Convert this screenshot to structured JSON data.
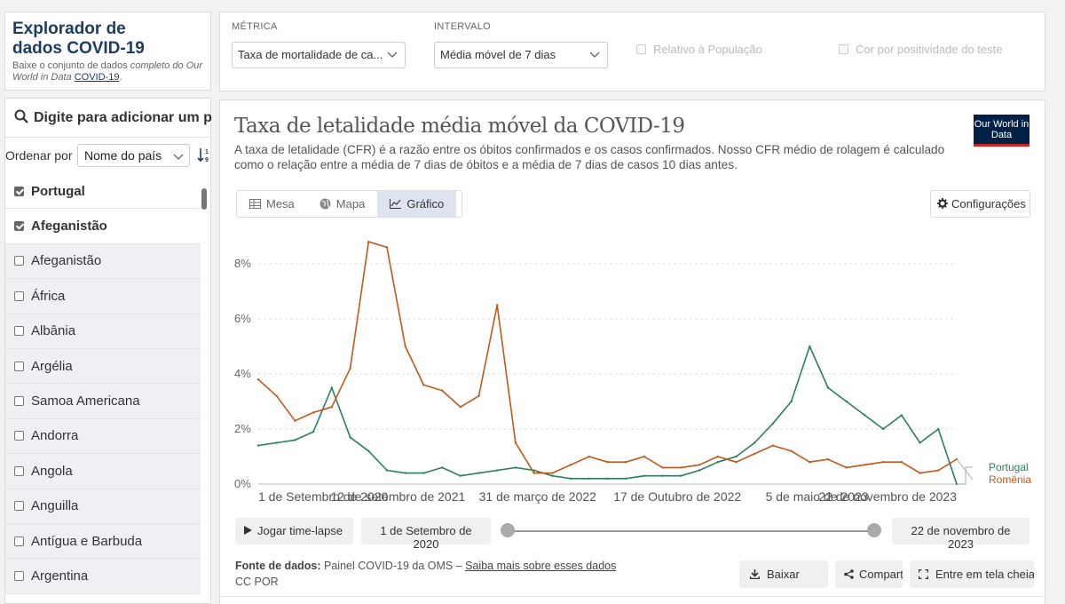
{
  "header": {
    "title": "Explorador de dados COVID-19",
    "subtitle_pre": "Baixe o conjunto de dados ",
    "subtitle_italic": "completo do Our World in Data",
    "subtitle_link": "COVID-19",
    "subtitle_post": "."
  },
  "controls": {
    "metric_label": "MÉTRICA",
    "metric_value": "Taxa de mortalidade de ca...",
    "interval_label": "INTERVALO",
    "interval_value": "Média móvel de 7 dias",
    "relative_label": "Relativo à População",
    "positivity_label": "Cor por positividade do teste"
  },
  "sidebar": {
    "search_placeholder": "Digite para adicionar um país",
    "sort_label": "Ordenar por",
    "sort_value": "Nome do país",
    "countries": [
      {
        "name": "Portugal",
        "checked": true
      },
      {
        "name": "Afeganistão",
        "checked": true
      },
      {
        "name": "Afeganistão",
        "checked": false
      },
      {
        "name": "África",
        "checked": false
      },
      {
        "name": "Albânia",
        "checked": false
      },
      {
        "name": "Argélia",
        "checked": false
      },
      {
        "name": "Samoa Americana",
        "checked": false
      },
      {
        "name": "Andorra",
        "checked": false
      },
      {
        "name": "Angola",
        "checked": false
      },
      {
        "name": "Anguilla",
        "checked": false
      },
      {
        "name": "Antígua e Barbuda",
        "checked": false
      },
      {
        "name": "Argentina",
        "checked": false
      }
    ]
  },
  "chart": {
    "title": "Taxa de letalidade média móvel da COVID-19",
    "subtitle": "A taxa de letalidade (CFR) é a razão entre os óbitos confirmados e os casos confirmados. Nosso CFR médio de rolagem é calculado como o relação entre a média de 7 dias de óbitos e a média de 7 dias de casos 10 dias antes.",
    "logo_text": "Our World in Data",
    "tabs": [
      "Mesa",
      "Mapa",
      "Gráfico"
    ],
    "active_tab": "Gráfico",
    "settings_label": "Configurações",
    "play_label": "Jogar time-lapse",
    "start_date": "1 de Setembro de 2020",
    "end_date": "22 de novembro de 2023",
    "source_label": "Fonte de dados:",
    "source_text": "Painel COVID-19 da OMS –",
    "source_link": "Saiba mais sobre esses dados",
    "license": "CC POR",
    "download_label": "Baixar",
    "share_label": "Compartilhar",
    "fullscreen_label": "Entre em tela cheia"
  },
  "colors": {
    "portugal": "#2a7f62",
    "romania": "#c0591b",
    "title_navy": "#1d3d63"
  },
  "chart_data": {
    "type": "line",
    "title": "Taxa de letalidade média móvel da COVID-19",
    "xlabel": "",
    "ylabel": "",
    "ylim": [
      0,
      9
    ],
    "yticks": [
      "0%",
      "2%",
      "4%",
      "6%",
      "8%"
    ],
    "xtick_labels": [
      "1 de Setembro de 2020",
      "12 de setembro de 2021",
      "31 de março de 2022",
      "17 de Outubro de 2022",
      "5 de maio de 2023",
      "22 de novembro de 2023"
    ],
    "x": [
      "2020-09",
      "2020-10",
      "2020-11",
      "2020-12",
      "2021-01",
      "2021-02",
      "2021-03",
      "2021-04",
      "2021-05",
      "2021-06",
      "2021-07",
      "2021-08",
      "2021-09",
      "2021-10",
      "2021-11",
      "2021-12",
      "2022-01",
      "2022-02",
      "2022-03",
      "2022-04",
      "2022-05",
      "2022-06",
      "2022-07",
      "2022-08",
      "2022-09",
      "2022-10",
      "2022-11",
      "2022-12",
      "2023-01",
      "2023-02",
      "2023-03",
      "2023-04",
      "2023-05",
      "2023-06",
      "2023-07",
      "2023-08",
      "2023-09",
      "2023-10",
      "2023-11"
    ],
    "series": [
      {
        "name": "Portugal",
        "values": [
          1.4,
          1.5,
          1.6,
          1.9,
          3.5,
          1.7,
          1.2,
          0.5,
          0.4,
          0.4,
          0.6,
          0.3,
          0.4,
          0.5,
          0.6,
          0.5,
          0.3,
          0.2,
          0.2,
          0.2,
          0.2,
          0.3,
          0.3,
          0.3,
          0.5,
          0.8,
          1.0,
          1.5,
          2.2,
          3.0,
          5.0,
          3.5,
          3.0,
          2.5,
          2.0,
          2.5,
          1.5,
          2.0,
          0.0
        ]
      },
      {
        "name": "Romênia",
        "values": [
          3.8,
          3.2,
          2.3,
          2.6,
          2.8,
          4.2,
          8.8,
          8.6,
          5.0,
          3.6,
          3.4,
          2.8,
          3.2,
          6.5,
          1.5,
          0.4,
          0.4,
          0.7,
          1.0,
          0.8,
          0.8,
          1.0,
          0.6,
          0.6,
          0.7,
          1.0,
          0.8,
          1.1,
          1.4,
          1.2,
          0.8,
          0.9,
          0.6,
          0.7,
          0.8,
          0.8,
          0.4,
          0.5,
          0.9
        ]
      }
    ],
    "grid": true,
    "legend": "right"
  }
}
